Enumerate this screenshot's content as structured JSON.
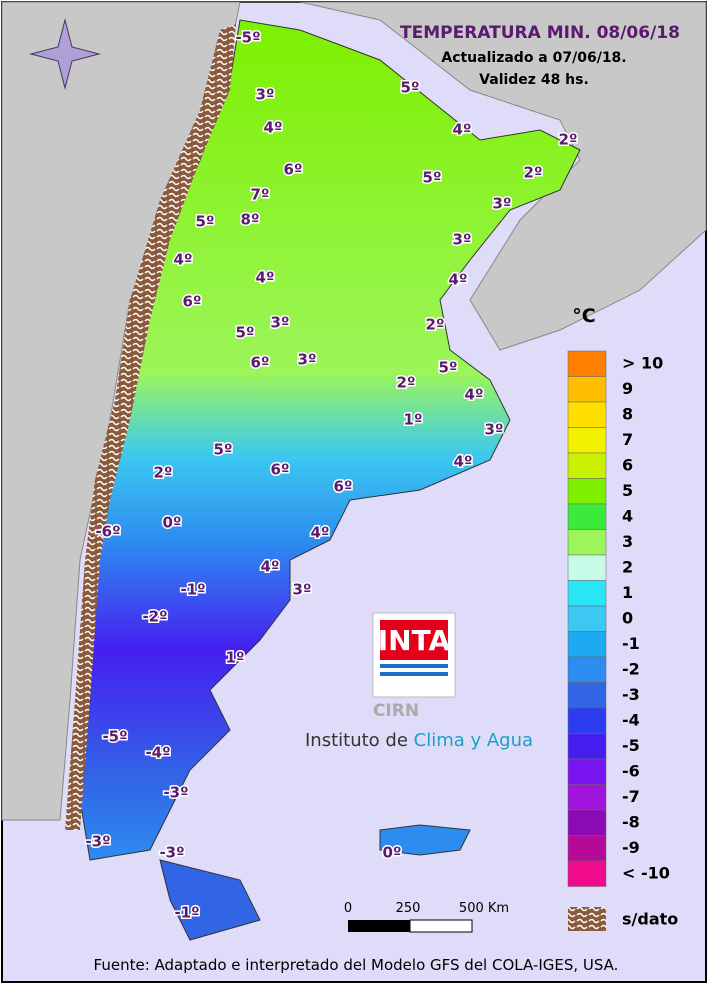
{
  "header": {
    "title": "TEMPERATURA MIN. 08/06/18",
    "updated": "Actualizado a 07/06/18.",
    "validity": "Validez 48 hs."
  },
  "map_labels": [
    "-5º",
    "3º",
    "4º",
    "5º",
    "4º",
    "2º",
    "6º",
    "5º",
    "2º",
    "7º",
    "3º",
    "8º",
    "5º",
    "3º",
    "4º",
    "4º",
    "4º",
    "6º",
    "3º",
    "2º",
    "5º",
    "6º",
    "3º",
    "5º",
    "2º",
    "4º",
    "1º",
    "3º",
    "5º",
    "4º",
    "6º",
    "2º",
    "6º",
    "-6º",
    "0º",
    "4º",
    "4º",
    "3º",
    "-1º",
    "-2º",
    "1º",
    "-5º",
    "-4º",
    "-3º",
    "-3º",
    "-3º",
    "0º",
    "-1º"
  ],
  "legend": {
    "unit": "°C",
    "items": [
      {
        "label": "> 10",
        "color": "#ff7f00"
      },
      {
        "label": "9",
        "color": "#ffbf00"
      },
      {
        "label": "8",
        "color": "#ffdf00"
      },
      {
        "label": "7",
        "color": "#f2f200"
      },
      {
        "label": "6",
        "color": "#c8f000"
      },
      {
        "label": "5",
        "color": "#7df000"
      },
      {
        "label": "4",
        "color": "#3cea3c"
      },
      {
        "label": "3",
        "color": "#9cf55a"
      },
      {
        "label": "2",
        "color": "#c8fae8"
      },
      {
        "label": "1",
        "color": "#28e6f5"
      },
      {
        "label": "0",
        "color": "#3cc8f0"
      },
      {
        "label": "-1",
        "color": "#1eaaf0"
      },
      {
        "label": "-2",
        "color": "#2d8cf0"
      },
      {
        "label": "-3",
        "color": "#3264e6"
      },
      {
        "label": "-4",
        "color": "#2d3cf0"
      },
      {
        "label": "-5",
        "color": "#461ef0"
      },
      {
        "label": "-6",
        "color": "#7814f0"
      },
      {
        "label": "-7",
        "color": "#a014dc"
      },
      {
        "label": "-8",
        "color": "#8c0ab4"
      },
      {
        "label": "-9",
        "color": "#b40a96"
      },
      {
        "label": "< -10",
        "color": "#f00a8c"
      }
    ],
    "nodata": "s/dato"
  },
  "scale": [
    "0",
    "250",
    "500 Km"
  ],
  "logo": {
    "brand": "INTA",
    "sub": "CIRN",
    "institute": "Instituto de ",
    "institute_highlight": "Clima y Agua"
  },
  "footer": "Fuente: Adaptado e interpretado del Modelo GFS del COLA-IGES, USA."
}
